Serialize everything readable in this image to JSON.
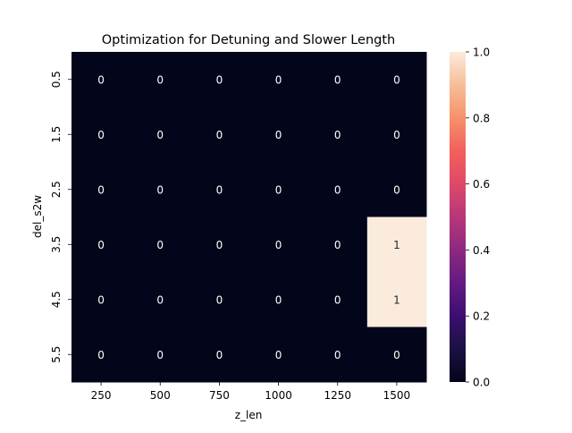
{
  "chart_data": {
    "type": "heatmap",
    "title": "Optimization for Detuning and Slower Length",
    "xlabel": "z_len",
    "ylabel": "del_s2w",
    "x_categories": [
      "250",
      "500",
      "750",
      "1000",
      "1250",
      "1500"
    ],
    "y_categories": [
      "0.5",
      "1.5",
      "2.5",
      "3.5",
      "4.5",
      "5.5"
    ],
    "values": [
      [
        0,
        0,
        0,
        0,
        0,
        0
      ],
      [
        0,
        0,
        0,
        0,
        0,
        0
      ],
      [
        0,
        0,
        0,
        0,
        0,
        0
      ],
      [
        0,
        0,
        0,
        0,
        0,
        1
      ],
      [
        0,
        0,
        0,
        0,
        0,
        1
      ],
      [
        0,
        0,
        0,
        0,
        0,
        0
      ]
    ],
    "annotations_shown": true,
    "colorbar": {
      "range": [
        0.0,
        1.0
      ],
      "tick_labels": [
        "0.0",
        "0.2",
        "0.4",
        "0.6",
        "0.8",
        "1.0"
      ],
      "tick_values": [
        0.0,
        0.2,
        0.4,
        0.6,
        0.8,
        1.0
      ],
      "colormap": "rocket",
      "low_color": "#03051a",
      "high_color": "#faebdd"
    }
  }
}
